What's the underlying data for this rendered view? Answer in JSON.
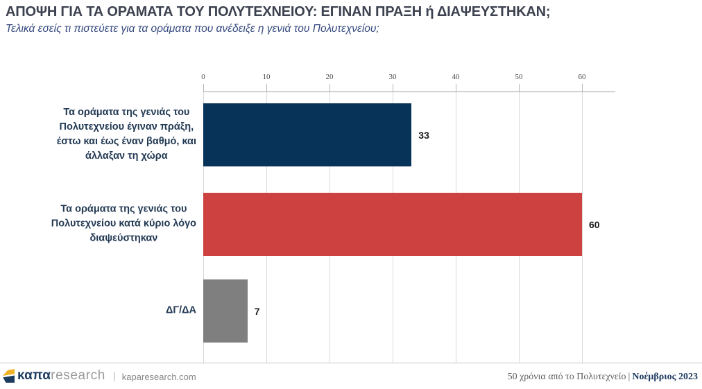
{
  "header": {
    "title": "ΑΠΟΨΗ ΓΙΑ ΤΑ ΟΡΑΜΑΤΑ ΤΟΥ ΠΟΛΥΤΕΧΝΕΙΟΥ: ΕΓΙΝΑΝ ΠΡΑΞΗ ή ΔΙΑΨΕΥΣΤΗΚΑΝ;",
    "subtitle": "Τελικά εσείς τι πιστεύετε για τα οράματα που ανέδειξε η γενιά του Πολυτεχνείου;"
  },
  "chart_data": {
    "type": "bar",
    "orientation": "horizontal",
    "categories": [
      "Τα οράματα της γενιάς του\nΠολυτεχνείου έγιναν πράξη,\nέστω και έως έναν βαθμό, και\nάλλαξαν τη χώρα",
      "Τα οράματα της γενιάς του\nΠολυτεχνείου κατά κύριο λόγο\nδιαψεύστηκαν",
      "ΔΓ/ΔΑ"
    ],
    "values": [
      33,
      60,
      7
    ],
    "value_labels": [
      "33",
      "60",
      "7"
    ],
    "bar_colors": [
      "#083358",
      "#cd4140",
      "#7f7f7f"
    ],
    "x_ticks": [
      0,
      10,
      20,
      30,
      40,
      50,
      60
    ],
    "xlim": [
      0,
      65
    ],
    "grid": true,
    "legend": "none",
    "title": "",
    "xlabel": "",
    "ylabel": ""
  },
  "footer": {
    "brand_kapa": "καπα",
    "brand_research": "research",
    "brand_separator": "|",
    "website": "kaparesearch.com",
    "survey_name": "50 χρόνια από το Πολυτεχνείο",
    "separator": "|",
    "date": "Νοέμβριος 2023"
  },
  "colors": {
    "navy": "#083358",
    "red": "#cd4140",
    "gray": "#7f7f7f",
    "brand_navy": "#1d3a5f",
    "brand_gold": "#efb225"
  }
}
